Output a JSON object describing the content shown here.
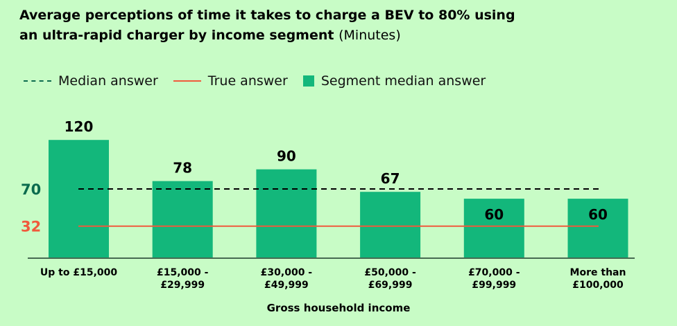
{
  "chart_data": {
    "type": "bar",
    "title": "Average perceptions of time it takes to charge a BEV to 80% using an ultra-rapid charger by income segment",
    "title_line1": "Average perceptions of time it takes to charge a BEV to 80% using",
    "title_line2": "an ultra-rapid charger by income segment",
    "unit": "(Minutes)",
    "categories": [
      [
        "Up to £15,000"
      ],
      [
        "£15,000 -",
        "£29,999"
      ],
      [
        "£30,000 -",
        "£49,999"
      ],
      [
        "£50,000 -",
        "£69,999"
      ],
      [
        "£70,000 -",
        "£99,999"
      ],
      [
        "More than",
        "£100,000"
      ]
    ],
    "values": [
      120,
      78,
      90,
      67,
      60,
      60
    ],
    "xlabel": "Gross household income",
    "ylabel": "",
    "ylim": [
      0,
      125
    ],
    "reference_lines": [
      {
        "name": "Median answer",
        "value": 70,
        "label": "70",
        "style": "dashed"
      },
      {
        "name": "True answer",
        "value": 32,
        "label": "32",
        "style": "solid"
      }
    ],
    "legend": [
      "Median answer",
      "True answer",
      "Segment median answer"
    ],
    "legend_position": "top-left",
    "grid": false
  },
  "colors": {
    "bar": "#13b77b",
    "median": "#0b6b4e",
    "true": "#f05a3c",
    "background": "#c8fcc6"
  }
}
